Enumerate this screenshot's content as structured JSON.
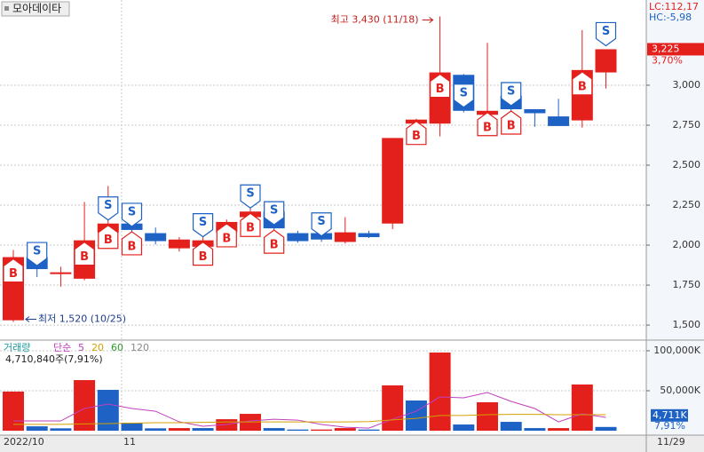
{
  "chart_data": {
    "type": "candlestick",
    "title": "모아데이타",
    "categories": [
      "2022/10",
      null,
      null,
      null,
      null,
      "11",
      null,
      null,
      null,
      null,
      null,
      null,
      null,
      null,
      null,
      null,
      null,
      null,
      null,
      null,
      null,
      null,
      null,
      null,
      null,
      "11/29"
    ],
    "open": [
      1530,
      1925,
      1830,
      1790,
      2080,
      2135,
      2075,
      1980,
      1990,
      2080,
      2175,
      2210,
      2075,
      2075,
      2020,
      2075,
      2135,
      2760,
      2760,
      3065,
      2815,
      2935,
      2850,
      2805,
      2780,
      3080
    ],
    "high": [
      1970,
      1930,
      1865,
      2270,
      2370,
      2205,
      2110,
      2050,
      2140,
      2160,
      2250,
      2240,
      2090,
      2095,
      2175,
      2090,
      2670,
      2790,
      3430,
      3070,
      3265,
      2950,
      2850,
      2915,
      3345,
      3225
    ],
    "low": [
      1520,
      1800,
      1740,
      1780,
      2030,
      2035,
      2005,
      1960,
      1980,
      2050,
      2160,
      2090,
      2015,
      2020,
      2010,
      2045,
      2100,
      2745,
      2680,
      2830,
      2700,
      2840,
      2740,
      2745,
      2735,
      2980
    ],
    "close": [
      1925,
      1850,
      1830,
      2030,
      2135,
      2095,
      2025,
      2035,
      2030,
      2145,
      2210,
      2105,
      2025,
      2035,
      2080,
      2050,
      2670,
      2785,
      3080,
      2840,
      2840,
      2850,
      2825,
      2745,
      3095,
      3225
    ],
    "up_color": "#e3201c",
    "down_color": "#1d62c4",
    "ylim": [
      1406,
      3533
    ],
    "yticks": [
      {
        "value": 1500,
        "label": "1,500"
      },
      {
        "value": 1750,
        "label": "1,750"
      },
      {
        "value": 2000,
        "label": "2,000"
      },
      {
        "value": 2250,
        "label": "2,250"
      },
      {
        "value": 2500,
        "label": "2,500"
      },
      {
        "value": 2750,
        "label": "2,750"
      },
      {
        "value": 3000,
        "label": "3,000"
      }
    ],
    "grid": true,
    "last_price": {
      "value": 3225,
      "label": "3,225"
    },
    "change_label": "3,70%",
    "lc_label": "LC:112,17",
    "hc_label": "HC:-5,98",
    "high_annotation": {
      "text": "최고 3,430 (11/18)",
      "index": 18
    },
    "low_annotation": {
      "text": "최저 1,520 (10/25)",
      "index": 0
    },
    "signals": {
      "buy_label": "B",
      "sell_label": "S",
      "buy": [
        0,
        3,
        4,
        5,
        8,
        9,
        10,
        11,
        17,
        18,
        20,
        21,
        24
      ],
      "sell": [
        1,
        4,
        5,
        8,
        10,
        11,
        13,
        19,
        21,
        25
      ]
    },
    "volume": {
      "label": "거래량",
      "ma_label": "단순",
      "ma_periods": [
        5,
        20,
        60,
        120
      ],
      "ma_colors": [
        "#c040c0",
        "#d4a000",
        "#2e9a2e",
        "#888888"
      ],
      "summary": "4,710,840주(7,91%)",
      "values": [
        49000,
        5500,
        3000,
        63300,
        51100,
        10000,
        3000,
        3300,
        3300,
        14400,
        21100,
        3300,
        1500,
        1500,
        3300,
        1500,
        56700,
        37800,
        97800,
        7800,
        35600,
        11100,
        3300,
        3300,
        57800,
        4711
      ],
      "colors": [
        "#e3201c",
        "#1d62c4",
        "#1d62c4",
        "#e3201c",
        "#1d62c4",
        "#1d62c4",
        "#1d62c4",
        "#e3201c",
        "#1d62c4",
        "#e3201c",
        "#e3201c",
        "#1d62c4",
        "#1d62c4",
        "#e3201c",
        "#e3201c",
        "#1d62c4",
        "#e3201c",
        "#1d62c4",
        "#e3201c",
        "#1d62c4",
        "#e3201c",
        "#1d62c4",
        "#1d62c4",
        "#e3201c",
        "#e3201c",
        "#1d62c4"
      ],
      "ma_lines": [
        {
          "color": "#c040c0",
          "values": [
            12200,
            12200,
            12200,
            27800,
            33300,
            27800,
            24400,
            11100,
            5600,
            7800,
            12200,
            14400,
            13300,
            7800,
            4400,
            3300,
            14400,
            24400,
            42200,
            41100,
            47800,
            36700,
            27800,
            11100,
            21100,
            16700
          ]
        },
        {
          "color": "#d4a000",
          "values": [
            8000,
            8000,
            8000,
            8500,
            9000,
            9500,
            10000,
            10000,
            10500,
            11000,
            11000,
            11000,
            11000,
            11000,
            11000,
            11500,
            13500,
            15500,
            19000,
            19000,
            20000,
            20500,
            20500,
            20000,
            20000,
            20000
          ]
        }
      ],
      "ylim": [
        -5500,
        113300
      ],
      "yticks": [
        {
          "value": 50000,
          "label": "50,000K"
        },
        {
          "value": 100000,
          "label": "100,000K"
        }
      ],
      "last": {
        "value": 4711,
        "label": "4,711K"
      },
      "last_pct": "7,91%"
    }
  }
}
